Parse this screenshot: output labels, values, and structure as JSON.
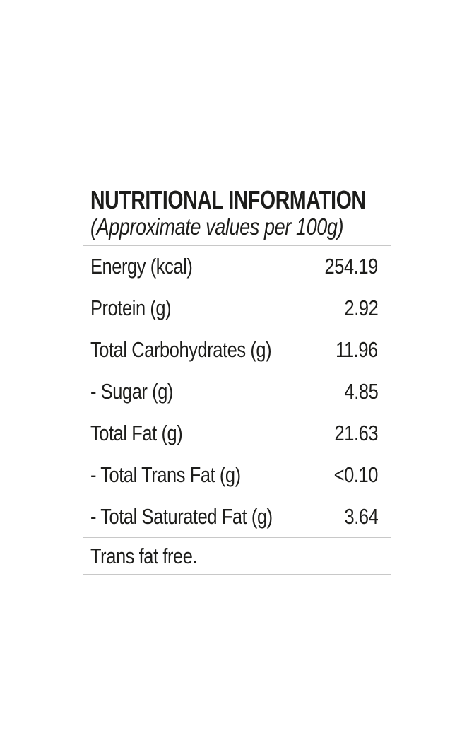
{
  "label": {
    "title": "NUTRITIONAL INFORMATION",
    "subtitle": "(Approximate values per 100g)",
    "rows": [
      {
        "name": "Energy (kcal)",
        "value": "254.19"
      },
      {
        "name": "Protein (g)",
        "value": "2.92"
      },
      {
        "name": "Total Carbohydrates (g)",
        "value": "11.96"
      },
      {
        "name": "- Sugar (g)",
        "value": "4.85"
      },
      {
        "name": "Total Fat (g)",
        "value": "21.63"
      },
      {
        "name": "- Total Trans Fat (g)",
        "value": "<0.10"
      },
      {
        "name": "- Total Saturated Fat (g)",
        "value": "3.64"
      }
    ],
    "footer_note": "Trans fat free."
  },
  "colors": {
    "text": "#1d1d1b",
    "border": "#c8c8c8",
    "background": "#ffffff"
  }
}
